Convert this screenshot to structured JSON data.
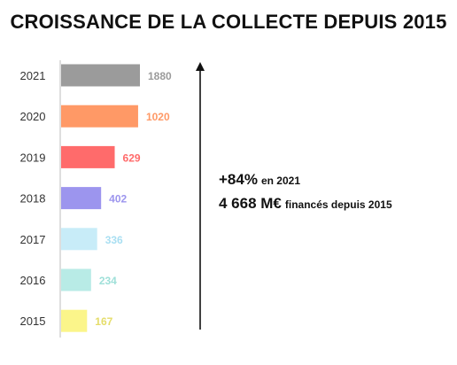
{
  "title": "CROISSANCE DE LA COLLECTE DEPUIS 2015",
  "chart_data": {
    "type": "bar",
    "orientation": "horizontal",
    "title": "CROISSANCE DE LA COLLECTE DEPUIS 2015",
    "categories": [
      "2021",
      "2020",
      "2019",
      "2018",
      "2017",
      "2016",
      "2015"
    ],
    "values": [
      1880,
      1020,
      629,
      402,
      336,
      234,
      167
    ],
    "bar_colors": [
      "#9b9b9b",
      "#ff9966",
      "#ff6b6b",
      "#9c95ee",
      "#c8ecf8",
      "#b8ebe6",
      "#fbf58a"
    ],
    "label_colors": [
      "#9b9b9b",
      "#ff9966",
      "#ff6b6b",
      "#9c95ee",
      "#a9dff2",
      "#9fe0d9",
      "#e5dd6a"
    ],
    "xlabel": "",
    "ylabel": "",
    "grid": false,
    "legend": "none"
  },
  "annotations": [
    {
      "big": "+84%",
      "small": "en 2021"
    },
    {
      "big": "4 668 M€",
      "small": "financés depuis 2015"
    }
  ]
}
